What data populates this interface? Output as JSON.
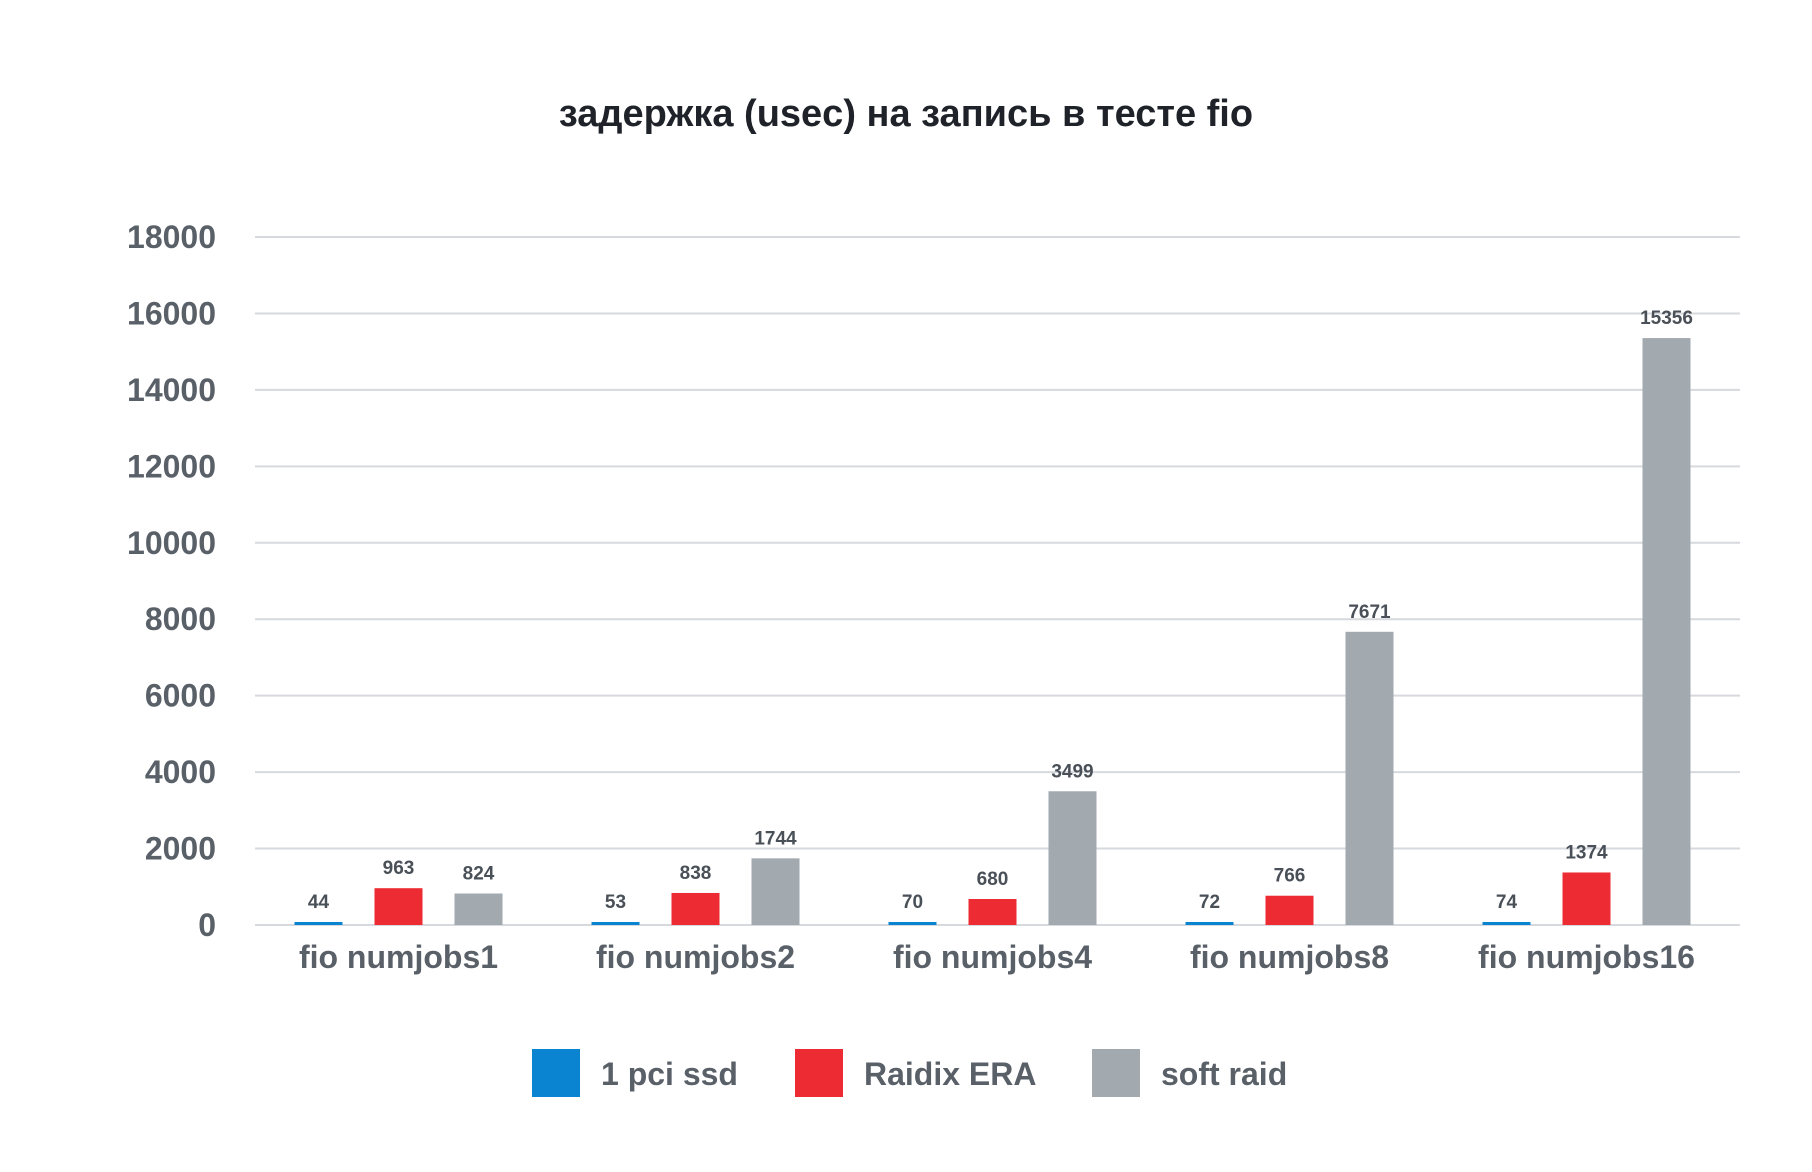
{
  "colors": {
    "series_1": "#0a84d0",
    "series_2": "#ec2b33",
    "series_3": "#a2aab0",
    "grid": "#d6d9dd",
    "text": "#5a6068",
    "title": "#1f2329"
  },
  "chart_data": {
    "type": "bar",
    "title": "задержка (usec) на запись в тесте fio",
    "xlabel": "",
    "ylabel": "",
    "ylim": [
      0,
      18000
    ],
    "yticks": [
      0,
      2000,
      4000,
      6000,
      8000,
      10000,
      12000,
      14000,
      16000,
      18000
    ],
    "grid": true,
    "legend_position": "bottom",
    "categories": [
      "fio numjobs1",
      "fio numjobs2",
      "fio numjobs4",
      "fio numjobs8",
      "fio numjobs16"
    ],
    "series": [
      {
        "name": "1 pci ssd",
        "values": [
          44,
          53,
          70,
          72,
          74
        ]
      },
      {
        "name": "Raidix ERA",
        "values": [
          963,
          838,
          680,
          766,
          1374
        ]
      },
      {
        "name": "soft raid",
        "values": [
          824,
          1744,
          3499,
          7671,
          15356
        ]
      }
    ]
  }
}
